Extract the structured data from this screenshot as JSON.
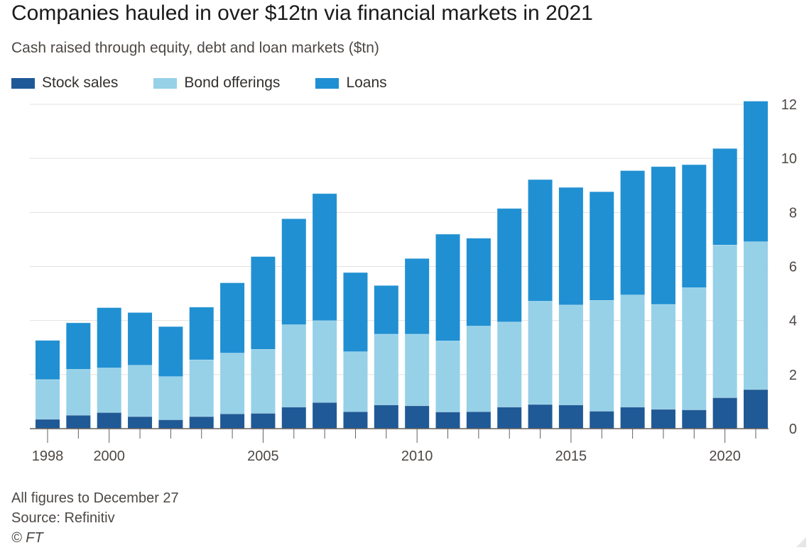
{
  "header": {
    "title": "Companies hauled in over $12tn via financial markets in 2021",
    "subtitle": "Cash raised through equity, debt and loan markets ($tn)"
  },
  "legend": {
    "items": [
      {
        "label": "Stock sales",
        "color": "#1f5a96"
      },
      {
        "label": "Bond offerings",
        "color": "#96d1e8"
      },
      {
        "label": "Loans",
        "color": "#2090d2"
      }
    ]
  },
  "footer": {
    "note": "All figures to December 27",
    "source": "Source: Refinitiv",
    "copyright": "© FT"
  },
  "chart_data": {
    "type": "bar",
    "stacked": true,
    "categories": [
      "1998",
      "1999",
      "2000",
      "2001",
      "2002",
      "2003",
      "2004",
      "2005",
      "2006",
      "2007",
      "2008",
      "2009",
      "2010",
      "2011",
      "2012",
      "2013",
      "2014",
      "2015",
      "2016",
      "2017",
      "2018",
      "2019",
      "2020",
      "2021"
    ],
    "x_tick_labels": [
      "1998",
      "2000",
      "2005",
      "2010",
      "2015",
      "2020"
    ],
    "series": [
      {
        "name": "Stock sales",
        "color": "#1f5a96",
        "values": [
          0.35,
          0.5,
          0.6,
          0.45,
          0.33,
          0.45,
          0.55,
          0.57,
          0.8,
          0.97,
          0.63,
          0.88,
          0.85,
          0.62,
          0.63,
          0.8,
          0.9,
          0.88,
          0.65,
          0.8,
          0.72,
          0.7,
          1.15,
          1.45
        ]
      },
      {
        "name": "Bond offerings",
        "color": "#96d1e8",
        "values": [
          1.47,
          1.7,
          1.65,
          1.9,
          1.6,
          2.1,
          2.25,
          2.37,
          3.05,
          3.03,
          2.22,
          2.62,
          2.65,
          2.63,
          3.17,
          3.15,
          3.82,
          3.7,
          4.1,
          4.15,
          3.88,
          4.52,
          5.65,
          5.47
        ]
      },
      {
        "name": "Loans",
        "color": "#2090d2",
        "values": [
          1.45,
          1.72,
          2.23,
          1.95,
          1.85,
          1.95,
          2.6,
          3.43,
          3.92,
          4.7,
          2.93,
          1.8,
          2.8,
          3.95,
          3.25,
          4.2,
          4.5,
          4.35,
          4.02,
          4.6,
          5.1,
          4.55,
          3.57,
          5.2
        ]
      }
    ],
    "ylim": [
      0,
      12
    ],
    "yticks": [
      0,
      2,
      4,
      6,
      8,
      10,
      12
    ],
    "y_axis_side": "right",
    "grid": true,
    "legend_position": "top-left"
  }
}
